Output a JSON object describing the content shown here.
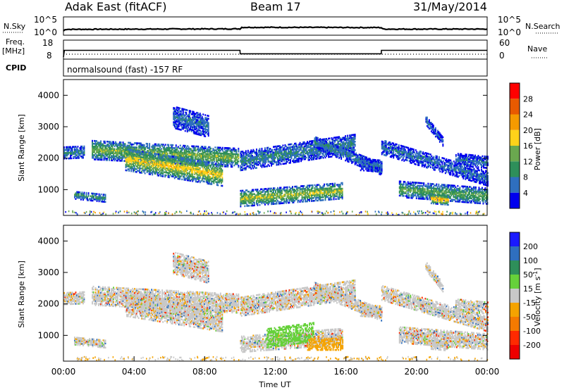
{
  "header": {
    "station": "Adak East (fitACF)",
    "beam": "Beam 17",
    "date": "31/May/2014"
  },
  "chart_data": [
    {
      "type": "line",
      "panel": "noise",
      "left_label": "N.Sky",
      "right_label": "N.Search",
      "y_ticks_left": [
        "10^5",
        "10^0"
      ],
      "y_ticks_right": [
        "10^5",
        "10^0"
      ],
      "ylim_log10": [
        0,
        5
      ],
      "series": [
        {
          "points_hours": [
            0,
            0.1,
            10,
            10.1,
            18,
            18.1,
            24
          ],
          "values_log10": [
            0.6,
            1.2,
            1.4,
            2.0,
            1.9,
            1.3,
            1.3
          ]
        }
      ]
    },
    {
      "type": "line",
      "panel": "frequency",
      "left_label": "Freq.",
      "left_unit": "[MHz]",
      "right_label": "Nave",
      "y_ticks_left": [
        "18",
        "8"
      ],
      "y_ticks_right": [
        "60",
        "0"
      ],
      "ylim": [
        8,
        18
      ],
      "series": [
        {
          "name": "Freq.",
          "x_hours": [
            0,
            0.05,
            10,
            10.01,
            18,
            18.01,
            24
          ],
          "values": [
            8,
            12.5,
            12.5,
            10.2,
            10.2,
            12.5,
            12.5
          ]
        },
        {
          "name": "Nave",
          "x_hours": [
            0,
            24
          ],
          "values": [
            0,
            0
          ]
        }
      ]
    },
    {
      "type": "text",
      "panel": "cpid",
      "label": "CPID",
      "value": "normalsound (fast) -157 RF"
    },
    {
      "type": "heatmap",
      "panel": "power",
      "ylabel": "Slant Range [km]",
      "xlim_hours": [
        0,
        24
      ],
      "ylim_km": [
        180,
        4500
      ],
      "y_ticks": [
        "1000",
        "2000",
        "3000",
        "4000"
      ],
      "colorbar_label": "Power [dB]",
      "colorbar_ticks": [
        "4",
        "8",
        "12",
        "16",
        "20",
        "24",
        "28"
      ],
      "colorbar_range": [
        0,
        30
      ],
      "colors": [
        "#0000ee",
        "#2f6fbf",
        "#2e8f5a",
        "#6aa84f",
        "#ffd21a",
        "#f59a00",
        "#e85a00",
        "#ff0000"
      ],
      "echo_bands": [
        {
          "h0": 0.0,
          "h1": 1.2,
          "r0": 2150,
          "r1": 2180,
          "w": 180,
          "level": 9
        },
        {
          "h0": 0.6,
          "h1": 2.4,
          "r0": 820,
          "r1": 720,
          "w": 130,
          "level": 10
        },
        {
          "h0": 1.6,
          "h1": 9.9,
          "r0": 2250,
          "r1": 2000,
          "w": 300,
          "level": 15
        },
        {
          "h0": 3.5,
          "h1": 9.0,
          "r0": 1950,
          "r1": 1450,
          "w": 350,
          "level": 19
        },
        {
          "h0": 6.2,
          "h1": 8.2,
          "r0": 3300,
          "r1": 3000,
          "w": 350,
          "level": 7
        },
        {
          "h0": 10.0,
          "h1": 15.8,
          "r0": 700,
          "r1": 950,
          "w": 250,
          "level": 17
        },
        {
          "h0": 10.0,
          "h1": 16.5,
          "r0": 1900,
          "r1": 2450,
          "w": 300,
          "level": 9
        },
        {
          "h0": 14.2,
          "h1": 18.0,
          "r0": 2500,
          "r1": 1650,
          "w": 200,
          "level": 8
        },
        {
          "h0": 16.8,
          "h1": 18.0,
          "r0": 1800,
          "r1": 1750,
          "w": 200,
          "level": 7
        },
        {
          "h0": 18.0,
          "h1": 24.0,
          "r0": 2350,
          "r1": 1350,
          "w": 240,
          "level": 7
        },
        {
          "h0": 19.0,
          "h1": 24.0,
          "r0": 1000,
          "r1": 780,
          "w": 250,
          "level": 13
        },
        {
          "h0": 20.8,
          "h1": 21.8,
          "r0": 700,
          "r1": 650,
          "w": 150,
          "level": 22
        },
        {
          "h0": 22.2,
          "h1": 24.0,
          "r0": 1950,
          "r1": 1850,
          "w": 180,
          "level": 7
        },
        {
          "h0": 20.5,
          "h1": 21.5,
          "r0": 3200,
          "r1": 2500,
          "w": 150,
          "level": 6
        }
      ]
    },
    {
      "type": "heatmap",
      "panel": "velocity",
      "ylabel": "Slant Range [km]",
      "xlabel": "Time UT",
      "xlim_hours": [
        0,
        24
      ],
      "ylim_km": [
        180,
        4500
      ],
      "x_ticks": [
        "00:00",
        "04:00",
        "08:00",
        "12:00",
        "16:00",
        "20:00",
        "00:00"
      ],
      "y_ticks": [
        "1000",
        "2000",
        "3000",
        "4000"
      ],
      "colorbar_label": "Velocity",
      "colorbar_unit": "[m s",
      "colorbar_unit_sup": "-1",
      "colorbar_unit_end": "]",
      "colorbar_ticks": [
        "200",
        "100",
        "50",
        "15",
        "-15",
        "-50",
        "-100",
        "-200"
      ],
      "colors": [
        "#1a1aff",
        "#2f6fbf",
        "#2e8f5a",
        "#66d13a",
        "#c8c8c8",
        "#f5a300",
        "#f57a00",
        "#ff2a00",
        "#ee0000"
      ],
      "ground_color": "#c8c8c8",
      "flow_regions": [
        {
          "h0": 11.5,
          "h1": 14.2,
          "r0": 900,
          "r1": 1100,
          "w": 300,
          "class": "positive-15-50"
        },
        {
          "h0": 13.8,
          "h1": 15.8,
          "r0": 700,
          "r1": 700,
          "w": 180,
          "class": "negative-15-50"
        }
      ]
    }
  ]
}
